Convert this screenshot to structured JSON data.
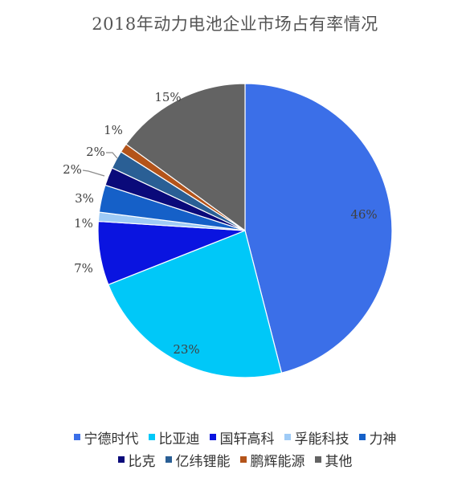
{
  "chart_data": {
    "type": "pie",
    "title": "2018年动力电池企业市场占有率情况",
    "slices": [
      {
        "name": "宁德时代",
        "value": 46,
        "label": "46%",
        "color": "#3B6FE8"
      },
      {
        "name": "比亚迪",
        "value": 23,
        "label": "23%",
        "color": "#00C8F8"
      },
      {
        "name": "国轩高科",
        "value": 7,
        "label": "7%",
        "color": "#0A14E0"
      },
      {
        "name": "孚能科技",
        "value": 1,
        "label": "1%",
        "color": "#9FCBF6"
      },
      {
        "name": "力神",
        "value": 3,
        "label": "3%",
        "color": "#1560C8"
      },
      {
        "name": "比克",
        "value": 2,
        "label": "2%",
        "color": "#0A0A7A"
      },
      {
        "name": "亿纬锂能",
        "value": 2,
        "label": "2%",
        "color": "#2A5F95"
      },
      {
        "name": "鹏辉能源",
        "value": 1,
        "label": "1%",
        "color": "#B4541A"
      },
      {
        "name": "其他",
        "value": 15,
        "label": "15%",
        "color": "#636363"
      }
    ],
    "legend": {
      "position": "bottom",
      "rows": [
        [
          "宁德时代",
          "比亚迪",
          "国轩高科",
          "孚能科技",
          "力神"
        ],
        [
          "比克",
          "亿纬锂能",
          "鹏辉能源",
          "其他"
        ]
      ]
    }
  }
}
